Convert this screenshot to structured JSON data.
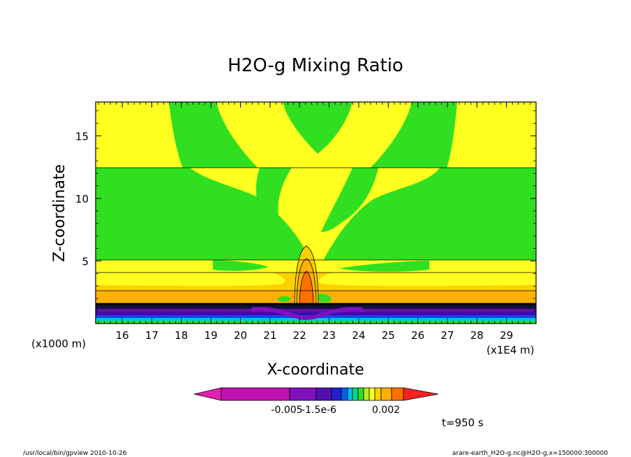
{
  "chart_data": {
    "type": "heatmap",
    "title": "H2O-g Mixing Ratio",
    "xlabel": "X-coordinate",
    "ylabel": "Z-coordinate",
    "x_unit_note": "(x1E4 m)",
    "y_unit_note": "(x1000 m)",
    "xlim": [
      15.1,
      30
    ],
    "ylim": [
      0,
      17.7
    ],
    "x_ticks": [
      16,
      17,
      18,
      19,
      20,
      21,
      22,
      23,
      24,
      25,
      26,
      27,
      28,
      29
    ],
    "y_ticks": [
      5,
      10,
      15
    ],
    "grid": false,
    "colorbar": {
      "colors": [
        "#e020b0",
        "#c010b0",
        "#8010c0",
        "#5010b0",
        "#2020d0",
        "#0060f0",
        "#00c0f0",
        "#00d890",
        "#30e020",
        "#b0f020",
        "#ffff20",
        "#ffd000",
        "#ffb000",
        "#ff7000",
        "#ff2020"
      ],
      "tick_labels": [
        "-0.005",
        "-1.5e-6",
        "0.002"
      ]
    },
    "time_label": "t=950 s"
  },
  "footer": {
    "left": "/usr/local/bin/gpview  2010-10-26",
    "right": "arare-earth_H2O-g.nc@H2O-g,x=150000:300000"
  }
}
